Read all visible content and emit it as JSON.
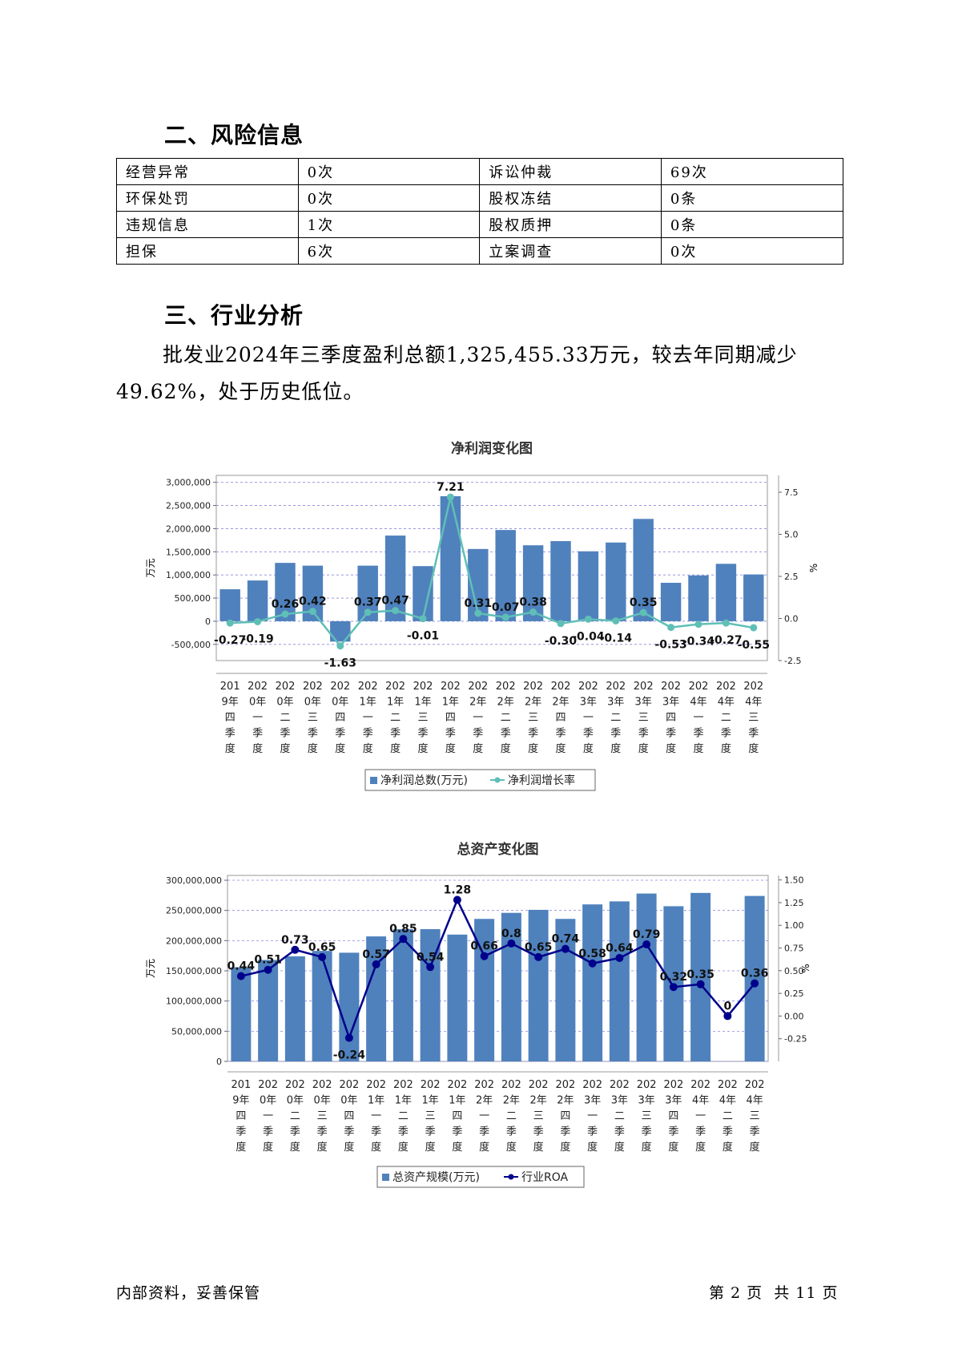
{
  "section2": {
    "heading": "二、风险信息",
    "rows": [
      [
        "经营异常",
        "0次",
        "诉讼仲裁",
        "69次"
      ],
      [
        "环保处罚",
        "0次",
        "股权冻结",
        "0条"
      ],
      [
        "违规信息",
        "1次",
        "股权质押",
        "0条"
      ],
      [
        "担保",
        "6次",
        "立案调查",
        "0次"
      ]
    ]
  },
  "section3": {
    "heading": "三、行业分析",
    "paragraph_line1": "批发业2024年三季度盈利总额1,325,455.33万元，较去年同期减少",
    "paragraph_line2": "49.62%，处于历史低位。"
  },
  "quarters": [
    [
      "201",
      "9年",
      "四",
      "季",
      "度"
    ],
    [
      "202",
      "0年",
      "一",
      "季",
      "度"
    ],
    [
      "202",
      "0年",
      "二",
      "季",
      "度"
    ],
    [
      "202",
      "0年",
      "三",
      "季",
      "度"
    ],
    [
      "202",
      "0年",
      "四",
      "季",
      "度"
    ],
    [
      "202",
      "1年",
      "一",
      "季",
      "度"
    ],
    [
      "202",
      "1年",
      "二",
      "季",
      "度"
    ],
    [
      "202",
      "1年",
      "三",
      "季",
      "度"
    ],
    [
      "202",
      "1年",
      "四",
      "季",
      "度"
    ],
    [
      "202",
      "2年",
      "一",
      "季",
      "度"
    ],
    [
      "202",
      "2年",
      "二",
      "季",
      "度"
    ],
    [
      "202",
      "2年",
      "三",
      "季",
      "度"
    ],
    [
      "202",
      "2年",
      "四",
      "季",
      "度"
    ],
    [
      "202",
      "3年",
      "一",
      "季",
      "度"
    ],
    [
      "202",
      "3年",
      "二",
      "季",
      "度"
    ],
    [
      "202",
      "3年",
      "三",
      "季",
      "度"
    ],
    [
      "202",
      "3年",
      "四",
      "季",
      "度"
    ],
    [
      "202",
      "4年",
      "一",
      "季",
      "度"
    ],
    [
      "202",
      "4年",
      "二",
      "季",
      "度"
    ],
    [
      "202",
      "4年",
      "三",
      "季",
      "度"
    ]
  ],
  "chart_data": [
    {
      "type": "bar",
      "title": "净利润变化图",
      "categories": [
        "2019年四季度",
        "2020年一季度",
        "2020年二季度",
        "2020年三季度",
        "2020年四季度",
        "2021年一季度",
        "2021年二季度",
        "2021年三季度",
        "2021年四季度",
        "2022年一季度",
        "2022年二季度",
        "2022年三季度",
        "2022年四季度",
        "2023年一季度",
        "2023年二季度",
        "2023年三季度",
        "2023年四季度",
        "2024年一季度",
        "2024年二季度",
        "2024年三季度"
      ],
      "ylabel_left": "万元",
      "ylabel_right": "%",
      "ylim_left": [
        -850000,
        3150000
      ],
      "ylim_right": [
        -2.5,
        8.5
      ],
      "yticks_left": [
        -500000,
        0,
        500000,
        1000000,
        1500000,
        2000000,
        2500000,
        3000000
      ],
      "ytick_labels_left": [
        "-500,000",
        "0",
        "500,000",
        "1,000,000",
        "1,500,000",
        "2,000,000",
        "2,500,000",
        "3,000,000"
      ],
      "yticks_right": [
        -2.5,
        0.0,
        2.5,
        5.0,
        7.5
      ],
      "ytick_labels_right": [
        "-2.5",
        "0.0",
        "2.5",
        "5.0",
        "7.5"
      ],
      "grid": true,
      "legend_position": "bottom",
      "bar_color": "#4f81bd",
      "line_color": "#5fbfb6",
      "series": [
        {
          "name": "净利润总数(万元)",
          "kind": "bar",
          "values": [
            690000,
            880000,
            1260000,
            1200000,
            -440000,
            1200000,
            1850000,
            1190000,
            2700000,
            1560000,
            1970000,
            1640000,
            1730000,
            1510000,
            1700000,
            2210000,
            830000,
            990000,
            1240000,
            1010000
          ]
        },
        {
          "name": "净利润增长率",
          "kind": "line",
          "values": [
            -0.27,
            -0.19,
            0.26,
            0.42,
            -1.63,
            0.37,
            0.47,
            -0.01,
            7.21,
            0.31,
            0.07,
            0.38,
            -0.3,
            -0.04,
            -0.14,
            0.35,
            -0.53,
            -0.34,
            -0.27,
            -0.55
          ],
          "labels": [
            "-0.27",
            "-0.19",
            "0.26",
            "0.42",
            "-1.63",
            "0.37",
            "0.47",
            "-0.01",
            "7.21",
            "0.31",
            "0.07",
            "0.38",
            "-0.30",
            "-0.04",
            "-0.14",
            "0.35",
            "-0.53",
            "-0.34",
            "-0.27",
            "-0.55"
          ]
        }
      ]
    },
    {
      "type": "bar",
      "title": "总资产变化图",
      "categories": [
        "2019年四季度",
        "2020年一季度",
        "2020年二季度",
        "2020年三季度",
        "2020年四季度",
        "2021年一季度",
        "2021年二季度",
        "2021年三季度",
        "2021年四季度",
        "2022年一季度",
        "2022年二季度",
        "2022年三季度",
        "2022年四季度",
        "2023年一季度",
        "2023年二季度",
        "2023年三季度",
        "2023年四季度",
        "2024年一季度",
        "2024年二季度",
        "2024年三季度"
      ],
      "ylabel_left": "万元",
      "ylabel_right": "%",
      "ylim_left": [
        0,
        308000000
      ],
      "ylim_right": [
        -0.5,
        1.55
      ],
      "yticks_left": [
        0,
        50000000,
        100000000,
        150000000,
        200000000,
        250000000,
        300000000
      ],
      "ytick_labels_left": [
        "0",
        "50,000,000",
        "100,000,000",
        "150,000,000",
        "200,000,000",
        "250,000,000",
        "300,000,000"
      ],
      "yticks_right": [
        -0.25,
        0.0,
        0.25,
        0.5,
        0.75,
        1.0,
        1.25,
        1.5
      ],
      "ytick_labels_right": [
        "-0.25",
        "0.00",
        "0.25",
        "0.50",
        "0.75",
        "1.00",
        "1.25",
        "1.50"
      ],
      "grid": true,
      "legend_position": "bottom",
      "bar_color": "#4f81bd",
      "line_color": "#00008b",
      "series": [
        {
          "name": "总资产规模(万元)",
          "kind": "bar",
          "values": [
            156000000,
            168000000,
            174000000,
            183000000,
            180000000,
            207000000,
            219000000,
            219000000,
            210000000,
            236000000,
            246000000,
            251000000,
            236000000,
            260000000,
            265000000,
            278000000,
            257000000,
            279000000,
            0,
            274000000
          ]
        },
        {
          "name": "行业ROA",
          "kind": "line",
          "values": [
            0.44,
            0.51,
            0.73,
            0.65,
            -0.24,
            0.57,
            0.85,
            0.54,
            1.28,
            0.66,
            0.8,
            0.65,
            0.74,
            0.58,
            0.64,
            0.79,
            0.32,
            0.35,
            0,
            0.36
          ],
          "labels": [
            "0.44",
            "0.51",
            "0.73",
            "0.65",
            "-0.24",
            "0.57",
            "0.85",
            "0.54",
            "1.28",
            "0.66",
            "0.8",
            "0.65",
            "0.74",
            "0.58",
            "0.64",
            "0.79",
            "0.32",
            "0.35",
            "0",
            "0.36"
          ]
        }
      ]
    }
  ],
  "footer": {
    "left": "内部资料，妥善保管",
    "right": "第 2 页  共 11 页"
  }
}
